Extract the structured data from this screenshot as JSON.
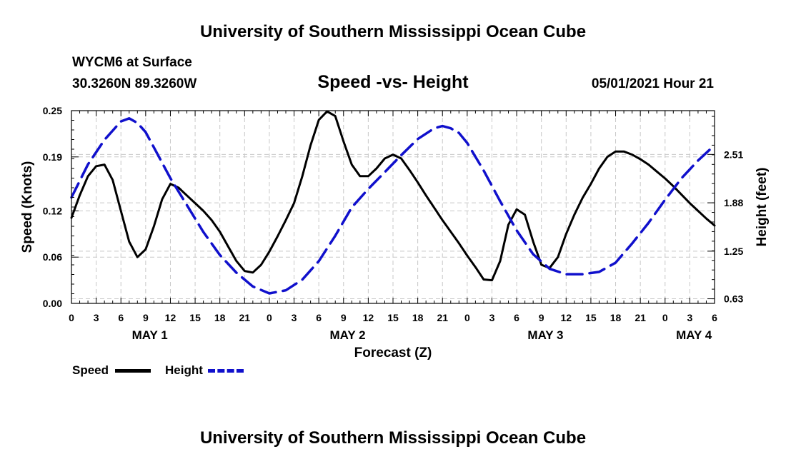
{
  "header": {
    "top_title": "University of Southern Mississippi Ocean Cube",
    "station": "WYCM6 at Surface",
    "coords": "30.3260N  89.3260W",
    "chart_title": "Speed -vs- Height",
    "date": "05/01/2021 Hour 21",
    "bottom_title": "University of Southern Mississippi Ocean Cube"
  },
  "legend": {
    "speed_label": "Speed",
    "height_label": "Height"
  },
  "colors": {
    "speed": "#000000",
    "height": "#1010cc",
    "grid": "#c8c8c8"
  },
  "chart_data": {
    "type": "line",
    "title": "Speed -vs- Height",
    "xlabel": "Forecast (Z)",
    "ylabel": "Speed (Knots)",
    "y2label": "Height (feet)",
    "xlim": [
      0,
      78
    ],
    "ylim": [
      0.0,
      0.25
    ],
    "y2lim": [
      0.57,
      3.08
    ],
    "x_tick_labels": [
      "0",
      "3",
      "6",
      "9",
      "12",
      "15",
      "18",
      "21",
      "0",
      "3",
      "6",
      "9",
      "12",
      "15",
      "18",
      "21",
      "0",
      "3",
      "6",
      "9",
      "12",
      "15",
      "18",
      "21",
      "0",
      "3",
      "6"
    ],
    "day_labels": [
      {
        "label": "MAY 1",
        "x": 9.5
      },
      {
        "label": "MAY 2",
        "x": 33.5
      },
      {
        "label": "MAY 3",
        "x": 57.5
      },
      {
        "label": "MAY 4",
        "x": 75.5
      }
    ],
    "y_ticks": [
      0.0,
      0.06,
      0.12,
      0.19,
      0.25
    ],
    "y_tick_labels": [
      "0.00",
      "0.06",
      "0.12",
      "0.19",
      "0.25"
    ],
    "y2_ticks": [
      0.63,
      1.25,
      1.88,
      2.51
    ],
    "y2_tick_labels": [
      "0.63",
      "1.25",
      "1.88",
      "2.51"
    ],
    "grid": true,
    "series": [
      {
        "name": "Speed",
        "axis": "left",
        "x": [
          0,
          1,
          2,
          3,
          4,
          5,
          6,
          7,
          8,
          9,
          10,
          11,
          12,
          13,
          14,
          15,
          16,
          17,
          18,
          19,
          20,
          21,
          22,
          23,
          24,
          25,
          26,
          27,
          28,
          29,
          30,
          31,
          32,
          33,
          34,
          35,
          36,
          37,
          38,
          39,
          40,
          41,
          42,
          43,
          44,
          45,
          46,
          47,
          48,
          49,
          50,
          51,
          52,
          53,
          54,
          55,
          56,
          57,
          58,
          59,
          60,
          61,
          62,
          63,
          64,
          65,
          66,
          67,
          68,
          69,
          70,
          71,
          72,
          73,
          74,
          75,
          76,
          77,
          78
        ],
        "values": [
          0.111,
          0.14,
          0.165,
          0.178,
          0.18,
          0.16,
          0.12,
          0.08,
          0.06,
          0.07,
          0.1,
          0.135,
          0.155,
          0.15,
          0.14,
          0.13,
          0.12,
          0.108,
          0.093,
          0.074,
          0.055,
          0.042,
          0.04,
          0.05,
          0.067,
          0.087,
          0.108,
          0.13,
          0.165,
          0.205,
          0.238,
          0.249,
          0.243,
          0.21,
          0.18,
          0.165,
          0.165,
          0.175,
          0.188,
          0.193,
          0.188,
          0.173,
          0.157,
          0.14,
          0.124,
          0.108,
          0.093,
          0.078,
          0.062,
          0.047,
          0.031,
          0.03,
          0.055,
          0.102,
          0.122,
          0.115,
          0.08,
          0.05,
          0.046,
          0.06,
          0.09,
          0.115,
          0.137,
          0.155,
          0.175,
          0.19,
          0.197,
          0.197,
          0.193,
          0.187,
          0.18,
          0.171,
          0.162,
          0.152,
          0.141,
          0.13,
          0.12,
          0.11,
          0.101
        ]
      },
      {
        "name": "Height",
        "axis": "right",
        "x": [
          0,
          2,
          4,
          6,
          7,
          8,
          9,
          10,
          12,
          14,
          16,
          18,
          20,
          22,
          24,
          26,
          28,
          30,
          32,
          34,
          36,
          38,
          40,
          42,
          44,
          45,
          46,
          47,
          48,
          50,
          52,
          54,
          56,
          58,
          60,
          62,
          64,
          66,
          68,
          70,
          72,
          74,
          76,
          78
        ],
        "values": [
          1.95,
          2.38,
          2.7,
          2.94,
          2.98,
          2.92,
          2.8,
          2.6,
          2.2,
          1.85,
          1.5,
          1.2,
          0.97,
          0.79,
          0.7,
          0.74,
          0.88,
          1.12,
          1.45,
          1.82,
          2.06,
          2.28,
          2.5,
          2.71,
          2.85,
          2.88,
          2.85,
          2.79,
          2.66,
          2.3,
          1.9,
          1.52,
          1.21,
          1.02,
          0.95,
          0.95,
          0.98,
          1.1,
          1.35,
          1.62,
          1.92,
          2.2,
          2.43,
          2.63
        ]
      }
    ]
  }
}
